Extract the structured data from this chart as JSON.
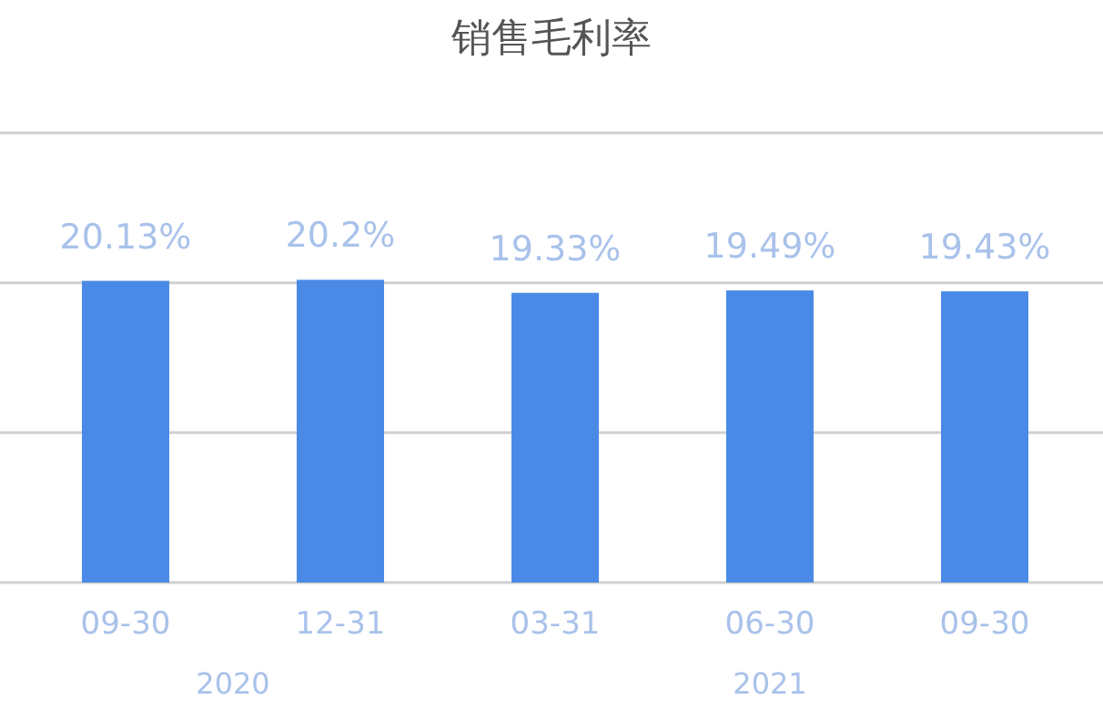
{
  "chart_data": {
    "type": "bar",
    "title": "销售毛利率",
    "categories": [
      "09-30",
      "12-31",
      "03-31",
      "06-30",
      "09-30"
    ],
    "values": [
      20.13,
      20.2,
      19.33,
      19.49,
      19.43
    ],
    "value_labels": [
      "20.13%",
      "20.2%",
      "19.33%",
      "19.49%",
      "19.43%"
    ],
    "color": "#4a8ae6",
    "ylim": [
      0,
      30
    ],
    "yticks": [
      {
        "value": 0,
        "label": null
      },
      {
        "value": 10,
        "label": null
      },
      {
        "value": 20,
        "label": null
      },
      {
        "value": 30,
        "label": null
      }
    ],
    "grid": "y",
    "annotations": [
      "2020",
      "2021"
    ]
  }
}
